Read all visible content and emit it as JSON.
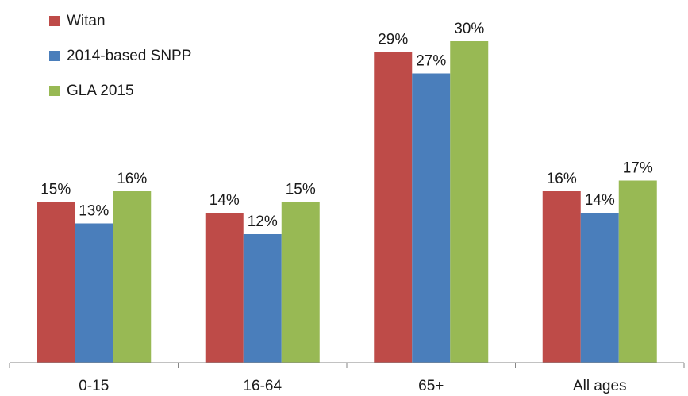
{
  "chart_data": {
    "type": "bar",
    "categories": [
      "0-15",
      "16-64",
      "65+",
      "All ages"
    ],
    "series": [
      {
        "name": "Witan",
        "color": "#be4b48",
        "values": [
          15,
          14,
          29,
          16
        ]
      },
      {
        "name": "2014-based SNPP",
        "color": "#4a7ebb",
        "values": [
          13,
          12,
          27,
          14
        ]
      },
      {
        "name": "GLA 2015",
        "color": "#98b954",
        "values": [
          16,
          15,
          30,
          17
        ]
      }
    ],
    "value_suffix": "%",
    "ylim": [
      0,
      33
    ],
    "grid": false,
    "legend_position": "top-left",
    "data_labels": true
  }
}
